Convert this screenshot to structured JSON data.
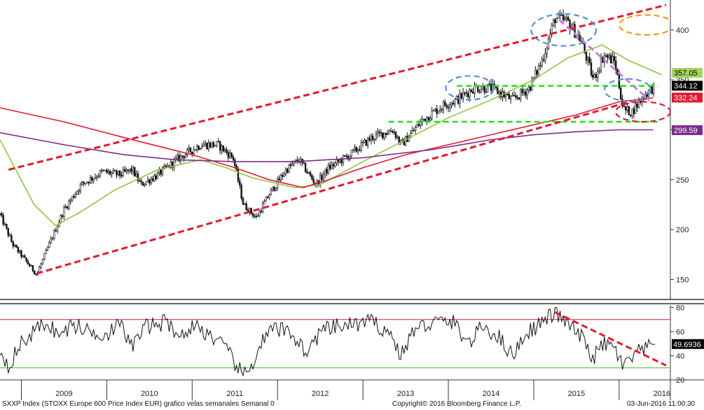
{
  "footer": {
    "left": "SXXP Index (STOXX Europe 600 Price Index EUR) grafico velas semanales  Semanal 0",
    "center": "Copyright© 2016 Bloomberg Finance L.P.",
    "right": "03-Jun-2016 11:00:30"
  },
  "chart_data": [
    {
      "type": "candlestick",
      "panel": "price",
      "x_labels": [
        "2009",
        "2010",
        "2011",
        "2012",
        "2013",
        "2014",
        "2015",
        "2016"
      ],
      "x_range": [
        2008.75,
        2016.6
      ],
      "ylim": [
        130,
        430
      ],
      "y_ticks": [
        150,
        200,
        250,
        300,
        350,
        400
      ],
      "price_anchors": [
        [
          2008.75,
          215
        ],
        [
          2008.9,
          185
        ],
        [
          2009.18,
          155
        ],
        [
          2009.35,
          190
        ],
        [
          2009.5,
          220
        ],
        [
          2009.7,
          245
        ],
        [
          2009.95,
          258
        ],
        [
          2010.15,
          255
        ],
        [
          2010.3,
          260
        ],
        [
          2010.4,
          245
        ],
        [
          2010.6,
          255
        ],
        [
          2010.85,
          272
        ],
        [
          2011.1,
          285
        ],
        [
          2011.3,
          285
        ],
        [
          2011.48,
          272
        ],
        [
          2011.6,
          225
        ],
        [
          2011.75,
          212
        ],
        [
          2011.9,
          235
        ],
        [
          2012.1,
          260
        ],
        [
          2012.25,
          270
        ],
        [
          2012.45,
          245
        ],
        [
          2012.6,
          262
        ],
        [
          2012.85,
          275
        ],
        [
          2013.1,
          292
        ],
        [
          2013.35,
          300
        ],
        [
          2013.45,
          285
        ],
        [
          2013.7,
          310
        ],
        [
          2013.95,
          325
        ],
        [
          2014.1,
          330
        ],
        [
          2014.3,
          342
        ],
        [
          2014.5,
          342
        ],
        [
          2014.75,
          330
        ],
        [
          2014.95,
          342
        ],
        [
          2015.1,
          370
        ],
        [
          2015.25,
          412
        ],
        [
          2015.4,
          408
        ],
        [
          2015.55,
          390
        ],
        [
          2015.7,
          350
        ],
        [
          2015.82,
          375
        ],
        [
          2015.95,
          368
        ],
        [
          2016.05,
          320
        ],
        [
          2016.15,
          318
        ],
        [
          2016.3,
          335
        ],
        [
          2016.42,
          344
        ]
      ],
      "moving_averages": [
        {
          "name": "",
          "color": "#8dc63f",
          "points": [
            [
              2008.75,
              290
            ],
            [
              2009.15,
              225
            ],
            [
              2009.4,
              204
            ],
            [
              2009.7,
              218
            ],
            [
              2010.1,
              240
            ],
            [
              2010.6,
              260
            ],
            [
              2011.1,
              270
            ],
            [
              2011.4,
              262
            ],
            [
              2011.7,
              252
            ],
            [
              2012.2,
              242
            ],
            [
              2012.5,
              245
            ],
            [
              2013.0,
              268
            ],
            [
              2013.5,
              290
            ],
            [
              2014.0,
              312
            ],
            [
              2014.5,
              330
            ],
            [
              2015.0,
              350
            ],
            [
              2015.4,
              372
            ],
            [
              2015.8,
              385
            ],
            [
              2016.1,
              370
            ],
            [
              2016.5,
              355
            ]
          ]
        },
        {
          "name": "",
          "color": "#e2182e",
          "points": [
            [
              2008.75,
              322
            ],
            [
              2009.5,
              308
            ],
            [
              2010.3,
              290
            ],
            [
              2011.0,
              275
            ],
            [
              2011.5,
              262
            ],
            [
              2011.9,
              250
            ],
            [
              2012.3,
              242
            ],
            [
              2012.6,
              250
            ],
            [
              2013.0,
              262
            ],
            [
              2013.5,
              275
            ],
            [
              2014.0,
              285
            ],
            [
              2014.5,
              295
            ],
            [
              2015.0,
              305
            ],
            [
              2015.5,
              315
            ],
            [
              2016.0,
              328
            ],
            [
              2016.4,
              332
            ]
          ]
        },
        {
          "name": "",
          "color": "#7b2d8b",
          "points": [
            [
              2008.75,
              297
            ],
            [
              2009.5,
              285
            ],
            [
              2010.2,
              275
            ],
            [
              2010.8,
              270
            ],
            [
              2011.5,
              268
            ],
            [
              2012.2,
              268
            ],
            [
              2013.0,
              272
            ],
            [
              2013.8,
              280
            ],
            [
              2014.5,
              290
            ],
            [
              2015.0,
              295
            ],
            [
              2015.5,
              298
            ],
            [
              2016.0,
              300
            ],
            [
              2016.4,
              300
            ]
          ]
        }
      ],
      "price_tags": [
        {
          "value": 357.05,
          "label": "357.05",
          "bg": "#a4d65e",
          "fg": "#000000"
        },
        {
          "value": 344.12,
          "label": "344.12",
          "bg": "#000000",
          "fg": "#ffffff"
        },
        {
          "value": 332.24,
          "label": "332.24",
          "bg": "#e2182e",
          "fg": "#ffffff"
        },
        {
          "value": 299.59,
          "label": "299.59",
          "bg": "#7b2d8b",
          "fg": "#ffffff"
        }
      ],
      "annotations": {
        "trendlines": [
          {
            "color": "#e2182e",
            "points": [
              [
                2008.85,
                260
              ],
              [
                2016.55,
                425
              ]
            ]
          },
          {
            "color": "#e2182e",
            "points": [
              [
                2009.18,
                156
              ],
              [
                2016.2,
                330
              ]
            ]
          },
          {
            "color": "#c77dde",
            "points": [
              [
                2015.3,
                410
              ],
              [
                2016.35,
                330
              ]
            ]
          }
        ],
        "horizontal_levels": [
          {
            "color": "#22dd22",
            "value": 344,
            "x_range": [
              2014.1,
              2016.45
            ]
          },
          {
            "color": "#22dd22",
            "value": 308,
            "x_range": [
              2013.3,
              2016.45
            ]
          }
        ],
        "ellipses": [
          {
            "color": "#5b8fd6",
            "cx": 2015.35,
            "cy": 400,
            "rx": 0.38,
            "ry": 16
          },
          {
            "color": "#5b8fd6",
            "cx": 2014.25,
            "cy": 342,
            "rx": 0.28,
            "ry": 12
          },
          {
            "color": "#5b8fd6",
            "cx": 2016.1,
            "cy": 340,
            "rx": 0.27,
            "ry": 11
          },
          {
            "color": "#f39c12",
            "cx": 2016.32,
            "cy": 405,
            "rx": 0.32,
            "ry": 10
          },
          {
            "color": "#e2182e",
            "cx": 2016.28,
            "cy": 318,
            "rx": 0.32,
            "ry": 10
          }
        ]
      }
    },
    {
      "type": "line",
      "panel": "oscillator",
      "ylim": [
        20,
        82
      ],
      "y_ticks": [
        20,
        40,
        60,
        80
      ],
      "last_value": {
        "value": 49.6936,
        "label": "49.6936"
      },
      "levels": [
        {
          "value": 70,
          "color": "#e2182e"
        },
        {
          "value": 30,
          "color": "#22cc22"
        }
      ],
      "oscillator_anchors": [
        [
          2008.75,
          45
        ],
        [
          2008.85,
          32
        ],
        [
          2009.0,
          50
        ],
        [
          2009.18,
          62
        ],
        [
          2009.3,
          68
        ],
        [
          2009.45,
          56
        ],
        [
          2009.6,
          66
        ],
        [
          2009.8,
          60
        ],
        [
          2010.0,
          58
        ],
        [
          2010.15,
          66
        ],
        [
          2010.3,
          48
        ],
        [
          2010.45,
          64
        ],
        [
          2010.7,
          68
        ],
        [
          2010.9,
          55
        ],
        [
          2011.0,
          66
        ],
        [
          2011.2,
          58
        ],
        [
          2011.4,
          45
        ],
        [
          2011.55,
          28
        ],
        [
          2011.65,
          24
        ],
        [
          2011.8,
          50
        ],
        [
          2011.95,
          62
        ],
        [
          2012.15,
          60
        ],
        [
          2012.35,
          42
        ],
        [
          2012.5,
          60
        ],
        [
          2012.7,
          64
        ],
        [
          2012.9,
          66
        ],
        [
          2013.1,
          68
        ],
        [
          2013.3,
          60
        ],
        [
          2013.45,
          40
        ],
        [
          2013.6,
          62
        ],
        [
          2013.85,
          68
        ],
        [
          2014.05,
          68
        ],
        [
          2014.25,
          50
        ],
        [
          2014.4,
          65
        ],
        [
          2014.6,
          55
        ],
        [
          2014.75,
          40
        ],
        [
          2014.9,
          58
        ],
        [
          2015.1,
          68
        ],
        [
          2015.25,
          76
        ],
        [
          2015.4,
          66
        ],
        [
          2015.55,
          56
        ],
        [
          2015.7,
          38
        ],
        [
          2015.82,
          50
        ],
        [
          2015.95,
          46
        ],
        [
          2016.05,
          30
        ],
        [
          2016.2,
          42
        ],
        [
          2016.3,
          45
        ],
        [
          2016.42,
          49.7
        ]
      ],
      "annotations": {
        "trendlines": [
          {
            "color": "#e2182e",
            "points": [
              [
                2015.25,
                76
              ],
              [
                2016.55,
                32
              ]
            ]
          }
        ]
      }
    }
  ]
}
